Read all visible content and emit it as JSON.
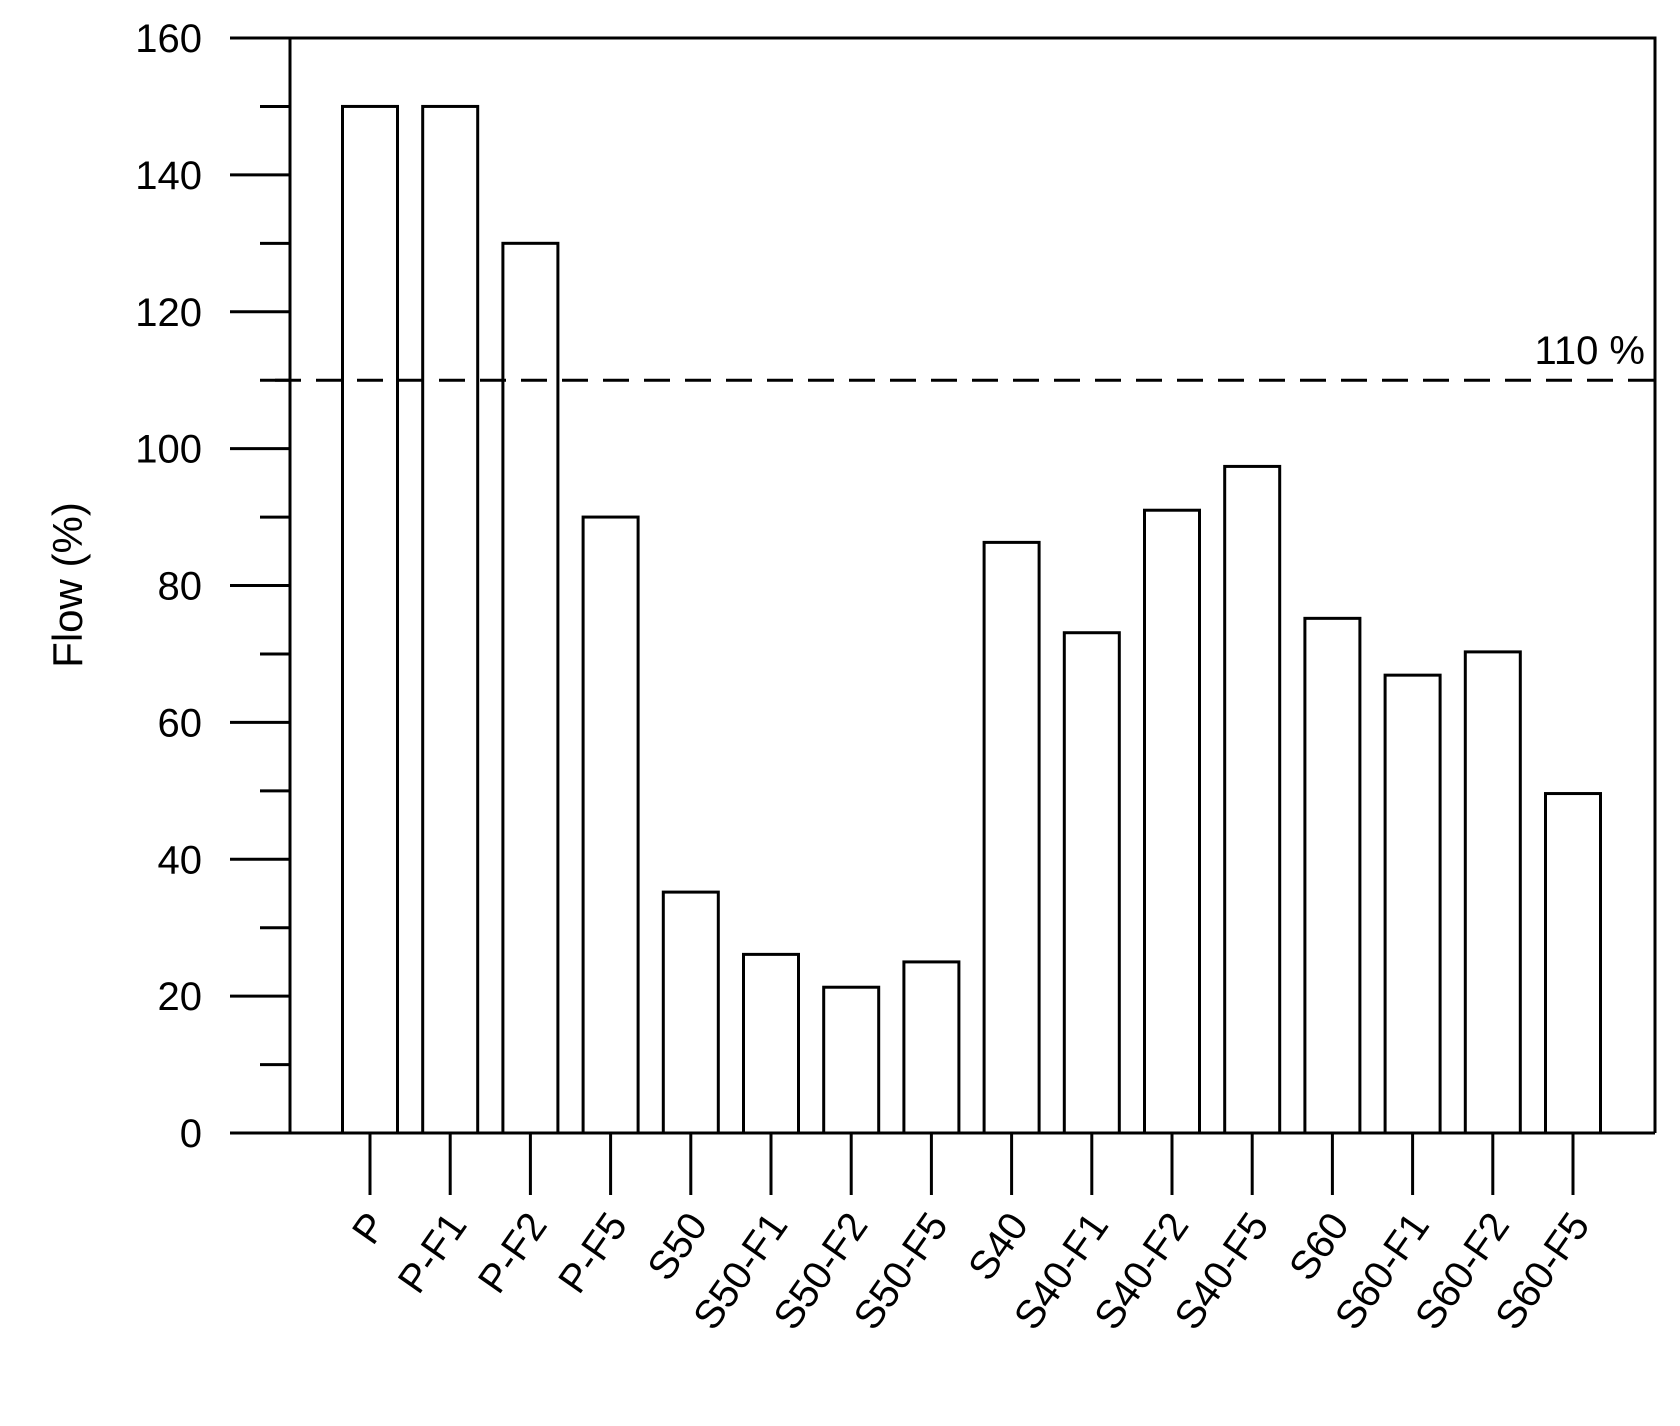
{
  "chart_data": {
    "type": "bar",
    "categories": [
      "P",
      "P-F1",
      "P-F2",
      "P-F5",
      "S50",
      "S50-F1",
      "S50-F2",
      "S50-F5",
      "S40",
      "S40-F1",
      "S40-F2",
      "S40-F5",
      "S60",
      "S60-F1",
      "S60-F2",
      "S60-F5"
    ],
    "values": [
      150,
      150,
      130,
      90,
      35.2,
      26.1,
      21.3,
      25.0,
      86.3,
      73.1,
      91.0,
      97.4,
      75.2,
      66.9,
      70.3,
      49.6
    ],
    "ylabel": "Flow (%)",
    "xlabel": "",
    "ylim": [
      0,
      160
    ],
    "yticks": [
      0,
      20,
      40,
      60,
      80,
      100,
      120,
      140,
      160
    ],
    "reference_line": {
      "value": 110,
      "label": "110 %",
      "style": "dashed"
    },
    "grid": false,
    "bar_fill": "#ffffff",
    "bar_stroke": "#000000"
  }
}
